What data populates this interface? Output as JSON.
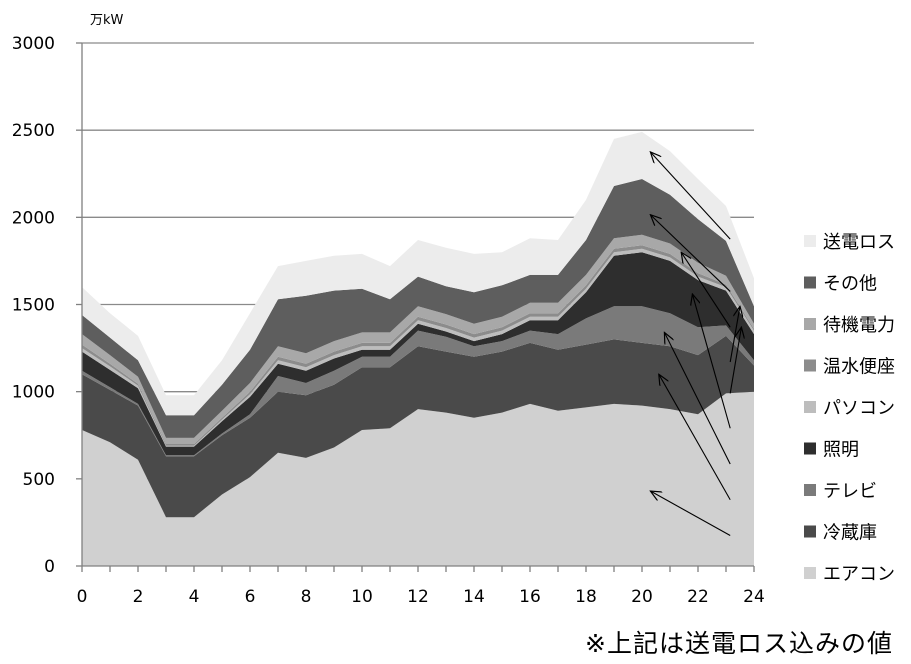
{
  "chart_data": {
    "type": "area",
    "stacked": true,
    "unit_label": "万kW",
    "x": [
      0,
      1,
      2,
      3,
      4,
      5,
      6,
      7,
      8,
      9,
      10,
      11,
      12,
      13,
      14,
      15,
      16,
      17,
      18,
      19,
      20,
      21,
      22,
      23,
      24
    ],
    "xticks": [
      0,
      2,
      4,
      6,
      8,
      10,
      12,
      14,
      16,
      18,
      20,
      22,
      24
    ],
    "yticks": [
      0,
      500,
      1000,
      1500,
      2000,
      2500,
      3000
    ],
    "ylim": [
      0,
      3000
    ],
    "xlim": [
      0,
      24
    ],
    "grid": true,
    "legend_position": "right",
    "series": [
      {
        "name": "エアコン",
        "color": "#d0d0d0",
        "values": [
          780,
          710,
          610,
          280,
          280,
          410,
          510,
          650,
          620,
          680,
          780,
          790,
          900,
          880,
          850,
          880,
          930,
          890,
          910,
          930,
          920,
          900,
          870,
          990,
          1000
        ]
      },
      {
        "name": "冷蔵庫",
        "color": "#4a4a4a",
        "values": [
          320,
          300,
          310,
          350,
          350,
          340,
          340,
          350,
          360,
          360,
          360,
          350,
          360,
          350,
          350,
          350,
          350,
          350,
          360,
          370,
          360,
          360,
          340,
          330,
          150
        ]
      },
      {
        "name": "テレビ",
        "color": "#7a7a7a",
        "values": [
          20,
          15,
          10,
          5,
          5,
          10,
          20,
          90,
          70,
          80,
          60,
          60,
          90,
          85,
          60,
          60,
          70,
          90,
          150,
          190,
          210,
          190,
          160,
          60,
          30
        ]
      },
      {
        "name": "照明",
        "color": "#2e2e2e",
        "values": [
          110,
          100,
          90,
          50,
          50,
          70,
          100,
          70,
          70,
          70,
          40,
          40,
          40,
          30,
          30,
          40,
          60,
          80,
          150,
          290,
          310,
          300,
          270,
          200,
          150
        ]
      },
      {
        "name": "パソコン",
        "color": "#bdbdbd",
        "values": [
          20,
          20,
          15,
          5,
          5,
          10,
          15,
          20,
          20,
          20,
          20,
          20,
          20,
          20,
          20,
          20,
          20,
          20,
          20,
          20,
          20,
          20,
          20,
          20,
          20
        ]
      },
      {
        "name": "温水便座",
        "color": "#8c8c8c",
        "values": [
          20,
          15,
          10,
          10,
          10,
          10,
          15,
          20,
          20,
          20,
          20,
          20,
          20,
          20,
          20,
          20,
          20,
          20,
          20,
          20,
          20,
          20,
          20,
          15,
          10
        ]
      },
      {
        "name": "待機電力",
        "color": "#a8a8a8",
        "values": [
          60,
          50,
          40,
          35,
          35,
          40,
          50,
          60,
          60,
          60,
          60,
          60,
          60,
          60,
          60,
          60,
          60,
          60,
          60,
          60,
          60,
          60,
          60,
          50,
          30
        ]
      },
      {
        "name": "その他",
        "color": "#5e5e5e",
        "values": [
          110,
          100,
          95,
          130,
          130,
          150,
          190,
          270,
          330,
          290,
          250,
          190,
          170,
          160,
          180,
          180,
          160,
          160,
          200,
          300,
          320,
          280,
          250,
          200,
          100
        ]
      },
      {
        "name": "送電ロス",
        "color": "#ececec",
        "values": [
          160,
          140,
          140,
          115,
          115,
          140,
          210,
          190,
          200,
          200,
          200,
          190,
          210,
          220,
          220,
          190,
          210,
          200,
          230,
          270,
          270,
          250,
          230,
          200,
          160
        ]
      }
    ],
    "legend_order": [
      "送電ロス",
      "その他",
      "待機電力",
      "温水便座",
      "パソコン",
      "照明",
      "テレビ",
      "冷蔵庫",
      "エアコン"
    ],
    "annotation_arrows": [
      {
        "series": "送電ロス",
        "from": [
          23.15,
          1875
        ],
        "to": [
          20.3,
          2375
        ]
      },
      {
        "series": "その他",
        "from": [
          23.15,
          1575
        ],
        "to": [
          20.3,
          2015
        ]
      },
      {
        "series": "待機電力",
        "from": [
          23.15,
          1370
        ],
        "to": [
          21.4,
          1800
        ]
      },
      {
        "series": "温水便座",
        "from": [
          23.15,
          1170
        ],
        "to": [
          23.5,
          1490
        ]
      },
      {
        "series": "パソコン",
        "from": [
          23.15,
          990
        ],
        "to": [
          23.55,
          1370
        ]
      },
      {
        "series": "照明",
        "from": [
          23.15,
          790
        ],
        "to": [
          21.8,
          1560
        ]
      },
      {
        "series": "テレビ",
        "from": [
          23.15,
          585
        ],
        "to": [
          20.8,
          1340
        ]
      },
      {
        "series": "冷蔵庫",
        "from": [
          23.15,
          380
        ],
        "to": [
          20.6,
          1100
        ]
      },
      {
        "series": "エアコン",
        "from": [
          23.15,
          175
        ],
        "to": [
          20.3,
          430
        ]
      }
    ]
  },
  "footnote": "※上記は送電ロス込みの値"
}
